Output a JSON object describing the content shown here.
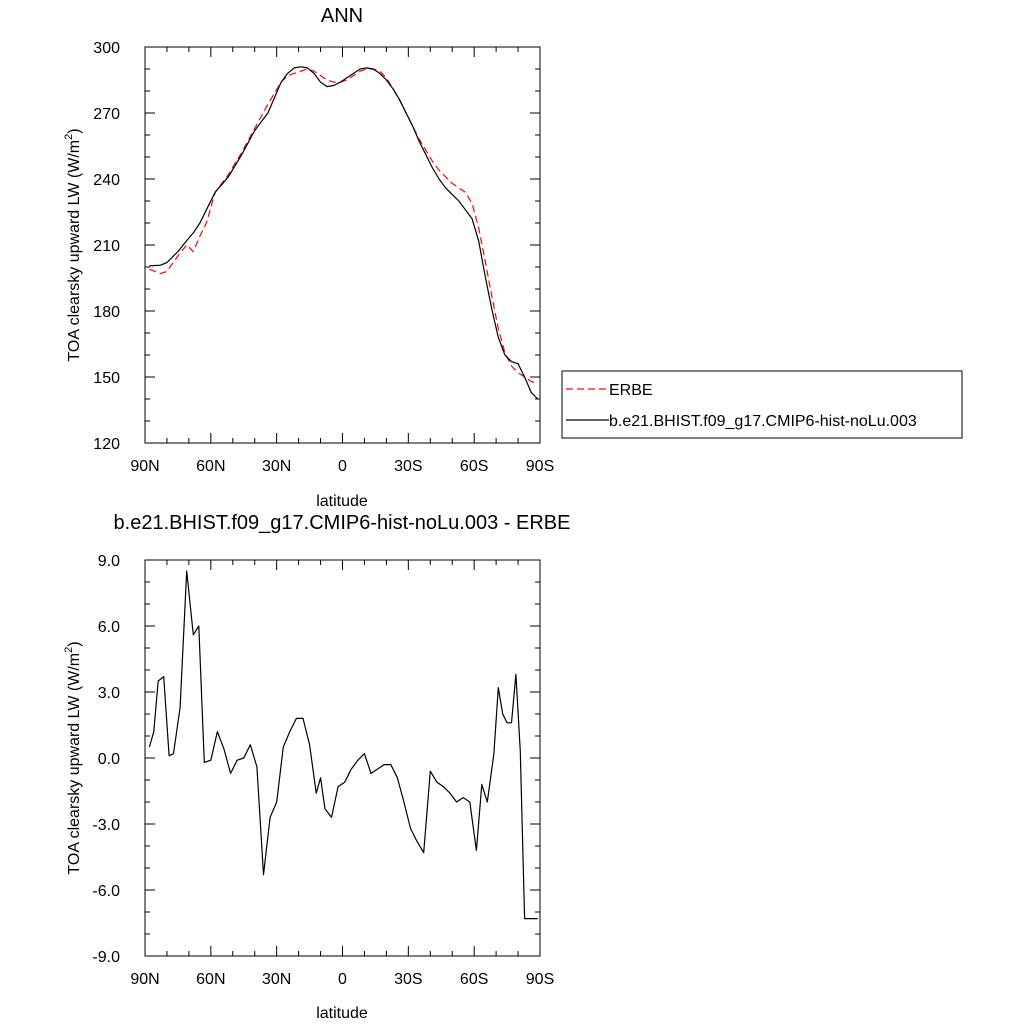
{
  "chart_data": [
    {
      "type": "line",
      "title": "ANN",
      "xlabel": "latitude",
      "ylabel": "TOA clearsky upward LW (W/m",
      "ylabel_sup": "2",
      "ylabel_close": ")",
      "xlim": [
        -90,
        90
      ],
      "ylim": [
        120,
        300
      ],
      "xticks": [
        -90,
        -60,
        -30,
        0,
        30,
        60,
        90
      ],
      "xtick_labels": [
        "90N",
        "60N",
        "30N",
        "0",
        "30S",
        "60S",
        "90S"
      ],
      "yticks": [
        120,
        150,
        180,
        210,
        240,
        270,
        300
      ],
      "ytick_labels": [
        "120",
        "150",
        "180",
        "210",
        "240",
        "270",
        "300"
      ],
      "grid": false,
      "legend_position": "right",
      "series": [
        {
          "name": "ERBE",
          "color": "#ff0000",
          "dash": "dashed",
          "x": [
            -88,
            -83,
            -80,
            -75,
            -71,
            -68,
            -65,
            -62,
            -58,
            -52,
            -46,
            -40,
            -34,
            -28,
            -25,
            -22,
            -19,
            -16,
            -13,
            -10,
            -7,
            -4,
            -1,
            2,
            5,
            8,
            11,
            14,
            17,
            20,
            23,
            26,
            29,
            32,
            35,
            38,
            41,
            44,
            47,
            50,
            53,
            56,
            59,
            62,
            65,
            68,
            71,
            74,
            77,
            80,
            83,
            86,
            89
          ],
          "y": [
            199,
            197,
            198,
            205,
            210,
            207,
            214,
            220,
            234,
            242,
            252,
            263,
            274,
            284,
            287,
            288,
            289,
            290,
            289,
            287,
            285,
            284,
            284,
            285,
            287,
            289,
            290,
            290,
            289,
            286,
            281,
            276,
            270,
            264,
            258,
            253,
            248,
            244,
            241,
            238,
            236,
            234,
            229,
            218,
            203,
            187,
            172,
            161,
            155,
            152,
            150,
            148,
            147
          ]
        },
        {
          "name": "b.e21.BHIST.f09_g17.CMIP6-hist-noLu.003",
          "color": "#000000",
          "dash": "solid",
          "x": [
            -88,
            -83,
            -80,
            -75,
            -71,
            -68,
            -65,
            -62,
            -58,
            -52,
            -46,
            -40,
            -34,
            -28,
            -25,
            -22,
            -19,
            -16,
            -13,
            -10,
            -7,
            -4,
            -1,
            2,
            5,
            8,
            11,
            14,
            17,
            20,
            23,
            26,
            29,
            32,
            35,
            38,
            41,
            44,
            47,
            50,
            53,
            56,
            59,
            62,
            65,
            68,
            71,
            74,
            77,
            80,
            83,
            86,
            89
          ],
          "y": [
            200.5,
            200.8,
            202,
            207,
            212,
            215.5,
            220,
            226,
            234,
            241,
            251,
            262,
            270,
            284,
            288,
            290.5,
            291,
            290.5,
            288,
            284,
            282,
            282.5,
            284,
            286,
            288,
            290,
            290.5,
            290,
            288,
            285,
            281,
            276,
            270,
            264,
            257,
            251,
            245,
            240,
            236,
            233,
            230,
            226,
            222,
            212,
            196,
            181,
            168,
            160,
            157,
            156,
            150,
            143,
            140
          ]
        }
      ]
    },
    {
      "type": "line",
      "title": "b.e21.BHIST.f09_g17.CMIP6-hist-noLu.003 - ERBE",
      "xlabel": "latitude",
      "ylabel": "TOA clearsky upward LW (W/m",
      "ylabel_sup": "2",
      "ylabel_close": ")",
      "xlim": [
        -90,
        90
      ],
      "ylim": [
        -9,
        9
      ],
      "xticks": [
        -90,
        -60,
        -30,
        0,
        30,
        60,
        90
      ],
      "xtick_labels": [
        "90N",
        "60N",
        "30N",
        "0",
        "30S",
        "60S",
        "90S"
      ],
      "yticks": [
        -9,
        -6,
        -3,
        0,
        3,
        6,
        9
      ],
      "ytick_labels": [
        "-9.0",
        "-6.0",
        "-3.0",
        "0.0",
        "3.0",
        "6.0",
        "9.0"
      ],
      "grid": false,
      "series": [
        {
          "color": "#000000",
          "dash": "solid",
          "x": [
            -88,
            -86,
            -84,
            -81.5,
            -79,
            -77,
            -74,
            -71,
            -68,
            -65.5,
            -63,
            -60,
            -57,
            -54,
            -51,
            -48,
            -45,
            -42,
            -39,
            -36,
            -33,
            -30,
            -27,
            -24,
            -21,
            -18,
            -15,
            -12,
            -10,
            -8,
            -5,
            -2,
            1,
            4,
            7,
            10,
            13,
            16,
            19,
            22,
            25,
            28,
            31,
            34,
            37,
            40,
            43,
            46,
            49,
            52,
            55,
            58,
            61,
            63.5,
            66,
            69,
            71,
            73,
            75,
            77,
            79,
            81,
            83,
            85,
            87,
            89
          ],
          "y": [
            0.5,
            1.2,
            3.5,
            3.7,
            0.1,
            0.2,
            2.3,
            8.5,
            5.6,
            6.0,
            -0.2,
            -0.1,
            1.2,
            0.4,
            -0.7,
            -0.1,
            0.0,
            0.6,
            -0.4,
            -5.3,
            -2.7,
            -2.0,
            0.5,
            1.2,
            1.8,
            1.8,
            0.6,
            -1.6,
            -0.9,
            -2.3,
            -2.7,
            -1.3,
            -1.1,
            -0.5,
            -0.1,
            0.2,
            -0.7,
            -0.5,
            -0.3,
            -0.3,
            -0.9,
            -2.0,
            -3.2,
            -3.8,
            -4.3,
            -0.6,
            -1.1,
            -1.3,
            -1.6,
            -2.0,
            -1.8,
            -2.0,
            -4.2,
            -1.2,
            -2.0,
            0.2,
            3.2,
            2.0,
            1.6,
            1.6,
            3.8,
            0.3,
            -7.3,
            -7.3,
            -7.3,
            -7.3
          ]
        }
      ]
    }
  ]
}
